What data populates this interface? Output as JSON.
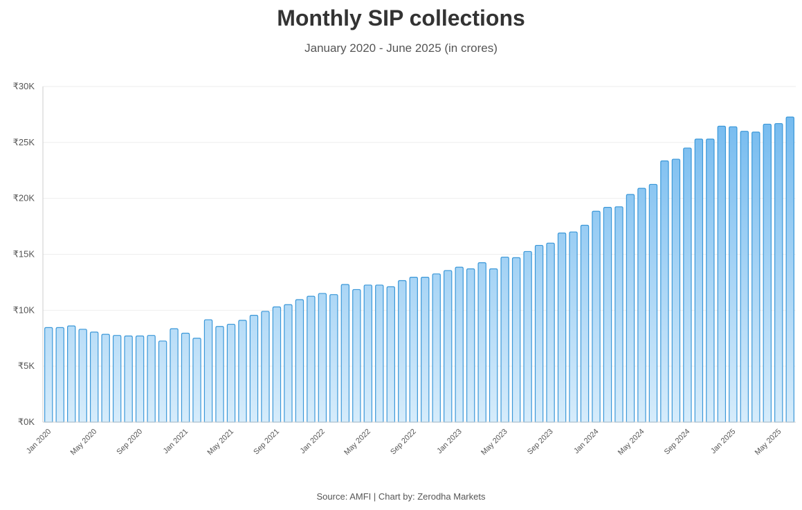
{
  "chart_data": {
    "type": "bar",
    "title": "Monthly SIP collections",
    "subtitle": "January 2020 - June 2025 (in crores)",
    "source": "Source: AMFI | Chart by: Zerodha Markets",
    "xlabel": "",
    "ylabel": "",
    "ylim": [
      0,
      30000
    ],
    "yticks": [
      0,
      5000,
      10000,
      15000,
      20000,
      25000,
      30000
    ],
    "ytick_labels": [
      "₹0K",
      "₹5K",
      "₹10K",
      "₹15K",
      "₹20K",
      "₹25K",
      "₹30K"
    ],
    "grid": true,
    "colors": {
      "bar_top": "#6cb6ee",
      "bar_bottom": "#d6ecfb",
      "bar_stroke": "#3a97d8",
      "grid": "#eeeeee",
      "axis": "#cccccc"
    },
    "categories": [
      "Jan 2020",
      "Feb 2020",
      "Mar 2020",
      "Apr 2020",
      "May 2020",
      "Jun 2020",
      "Jul 2020",
      "Aug 2020",
      "Sep 2020",
      "Oct 2020",
      "Nov 2020",
      "Dec 2020",
      "Jan 2021",
      "Feb 2021",
      "Mar 2021",
      "Apr 2021",
      "May 2021",
      "Jun 2021",
      "Jul 2021",
      "Aug 2021",
      "Sep 2021",
      "Oct 2021",
      "Nov 2021",
      "Dec 2021",
      "Jan 2022",
      "Feb 2022",
      "Mar 2022",
      "Apr 2022",
      "May 2022",
      "Jun 2022",
      "Jul 2022",
      "Aug 2022",
      "Sep 2022",
      "Oct 2022",
      "Nov 2022",
      "Dec 2022",
      "Jan 2023",
      "Feb 2023",
      "Mar 2023",
      "Apr 2023",
      "May 2023",
      "Jun 2023",
      "Jul 2023",
      "Aug 2023",
      "Sep 2023",
      "Oct 2023",
      "Nov 2023",
      "Dec 2023",
      "Jan 2024",
      "Feb 2024",
      "Mar 2024",
      "Apr 2024",
      "May 2024",
      "Jun 2024",
      "Jul 2024",
      "Aug 2024",
      "Sep 2024",
      "Oct 2024",
      "Nov 2024",
      "Dec 2024",
      "Jan 2025",
      "Feb 2025",
      "Mar 2025",
      "Apr 2025",
      "May 2025",
      "Jun 2025"
    ],
    "values": [
      8450,
      8450,
      8600,
      8300,
      8050,
      7850,
      7750,
      7700,
      7700,
      7750,
      7250,
      8350,
      7950,
      7500,
      9150,
      8550,
      8750,
      9100,
      9550,
      9900,
      10300,
      10500,
      10950,
      11250,
      11500,
      11400,
      12300,
      11850,
      12250,
      12250,
      12100,
      12650,
      12950,
      12950,
      13250,
      13550,
      13850,
      13700,
      14250,
      13700,
      14750,
      14700,
      15250,
      15800,
      16000,
      16900,
      17000,
      17600,
      18850,
      19200,
      19250,
      20350,
      20900,
      21250,
      23350,
      23500,
      24500,
      25300,
      25300,
      26450,
      26400,
      25999,
      25926,
      26632,
      26688,
      27269
    ],
    "xtick_labels": [
      "Jan 2020",
      "May 2020",
      "Sep 2020",
      "Jan 2021",
      "May 2021",
      "Sep 2021",
      "Jan 2022",
      "May 2022",
      "Sep 2022",
      "Jan 2023",
      "May 2023",
      "Sep 2023",
      "Jan 2024",
      "May 2024",
      "Sep 2024",
      "Jan 2025",
      "May 2025"
    ]
  }
}
